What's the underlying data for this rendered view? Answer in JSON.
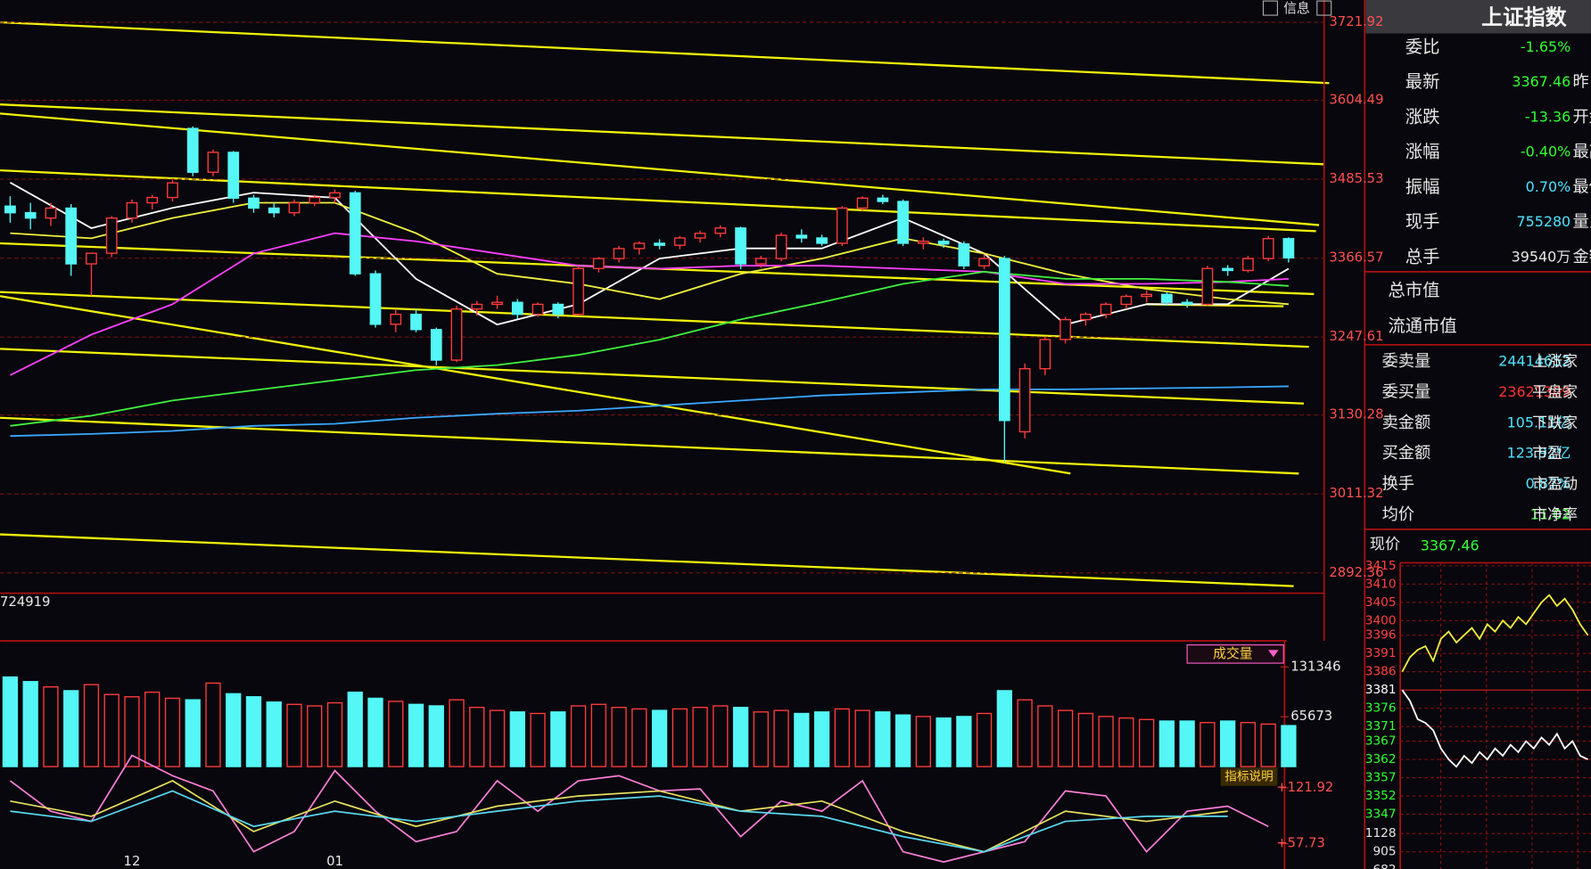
{
  "toolbar": {
    "info": "信息"
  },
  "chart_data": [
    {
      "type": "candlestick",
      "categories": [
        null,
        null,
        null,
        null,
        null,
        null,
        "12",
        null,
        null,
        null,
        null,
        null,
        null,
        null,
        null,
        null,
        "01",
        null,
        null,
        null,
        null,
        null,
        null,
        null,
        null,
        null,
        null,
        null,
        null,
        null,
        null,
        null,
        null,
        null,
        null,
        null,
        null,
        null,
        null,
        null,
        null,
        null,
        null,
        null,
        null,
        null,
        null,
        null,
        null,
        null,
        null,
        null,
        null,
        null,
        null,
        null,
        null,
        null,
        null,
        null,
        null,
        null,
        null,
        null
      ],
      "open": [
        3445,
        3435,
        3427,
        3442,
        3358,
        3374,
        3427,
        3450,
        3458,
        3562,
        3496,
        3526,
        3457,
        3442,
        3435,
        3450,
        3458,
        3465,
        3343,
        3267,
        3282,
        3259,
        3213,
        3290,
        3297,
        3300,
        3282,
        3297,
        3282,
        3351,
        3366,
        3381,
        3389,
        3386,
        3397,
        3404,
        3412,
        3358,
        3366,
        3401,
        3397,
        3389,
        3442,
        3457,
        3452,
        3389,
        3392,
        3388,
        3355,
        3366,
        3105,
        3200,
        3244,
        3274,
        3282,
        3297,
        3309,
        3312,
        3300,
        3297,
        3351,
        3348,
        3366,
        3396
      ],
      "high": [
        3460,
        3450,
        3450,
        3448,
        3375,
        3430,
        3455,
        3462,
        3485,
        3565,
        3530,
        3528,
        3462,
        3450,
        3455,
        3462,
        3470,
        3468,
        3348,
        3290,
        3290,
        3262,
        3295,
        3302,
        3310,
        3305,
        3300,
        3300,
        3355,
        3368,
        3385,
        3392,
        3395,
        3400,
        3408,
        3416,
        3414,
        3370,
        3405,
        3410,
        3402,
        3445,
        3460,
        3462,
        3455,
        3398,
        3396,
        3392,
        3372,
        3370,
        3208,
        3248,
        3278,
        3285,
        3300,
        3312,
        3318,
        3315,
        3305,
        3355,
        3356,
        3370,
        3400,
        3398
      ],
      "low": [
        3420,
        3410,
        3415,
        3340,
        3310,
        3368,
        3420,
        3440,
        3452,
        3490,
        3490,
        3450,
        3435,
        3428,
        3430,
        3445,
        3450,
        3340,
        3262,
        3255,
        3255,
        3205,
        3210,
        3280,
        3290,
        3275,
        3278,
        3276,
        3280,
        3345,
        3360,
        3372,
        3380,
        3380,
        3390,
        3398,
        3350,
        3352,
        3362,
        3390,
        3385,
        3385,
        3438,
        3448,
        3385,
        3380,
        3382,
        3350,
        3350,
        3060,
        3095,
        3190,
        3238,
        3265,
        3276,
        3290,
        3300,
        3295,
        3292,
        3295,
        3340,
        3345,
        3362,
        3360
      ],
      "close": [
        3435,
        3427,
        3442,
        3358,
        3374,
        3427,
        3450,
        3458,
        3480,
        3496,
        3526,
        3457,
        3442,
        3435,
        3450,
        3458,
        3465,
        3343,
        3267,
        3282,
        3259,
        3213,
        3290,
        3297,
        3300,
        3282,
        3297,
        3282,
        3351,
        3366,
        3381,
        3389,
        3386,
        3397,
        3404,
        3412,
        3358,
        3366,
        3401,
        3397,
        3389,
        3442,
        3457,
        3452,
        3389,
        3392,
        3388,
        3355,
        3366,
        3122,
        3200,
        3244,
        3274,
        3282,
        3297,
        3309,
        3312,
        3300,
        3297,
        3351,
        3348,
        3366,
        3396,
        3367
      ],
      "up_color": "#ff3b3b",
      "down_color": "#54f6f6",
      "lines": [
        {
          "color": "#ffffff",
          "x": [
            0,
            4,
            8,
            12,
            16,
            20,
            24,
            28,
            32,
            36,
            40,
            44,
            48,
            52,
            56,
            60,
            63
          ],
          "values": [
            3480.5,
            3411.8,
            3442.3,
            3465.3,
            3457.6,
            3335.4,
            3266.6,
            3297.2,
            3366,
            3381.3,
            3381.3,
            3427.1,
            3373.6,
            3266.6,
            3297.2,
            3297.2,
            3350.7
          ]
        },
        {
          "color": "#f0f040",
          "x": [
            0,
            4,
            8,
            12,
            16,
            20,
            24,
            28,
            32,
            36,
            40,
            44,
            48,
            52,
            56,
            60,
            63
          ],
          "values": [
            3404.2,
            3396.5,
            3427.1,
            3450,
            3450,
            3404.2,
            3343,
            3327.8,
            3304.8,
            3343,
            3366,
            3396.5,
            3373.6,
            3343,
            3320.1,
            3304.8,
            3297.2
          ]
        },
        {
          "color": "#ff40ff",
          "x": [
            0,
            4,
            8,
            12,
            16,
            20,
            24,
            28,
            32,
            36,
            40,
            44,
            48,
            52,
            56,
            60,
            63
          ],
          "values": [
            3190.3,
            3251.4,
            3297.2,
            3373.6,
            3404.2,
            3392,
            3373.6,
            3355.3,
            3350.7,
            3355.3,
            3355.3,
            3350.7,
            3346.1,
            3327.8,
            3327.8,
            3330.8,
            3335.4
          ]
        },
        {
          "color": "#40f040",
          "x": [
            0,
            4,
            8,
            12,
            16,
            20,
            24,
            28,
            32,
            36,
            40,
            44,
            48,
            52,
            56,
            60,
            63
          ],
          "values": [
            3113.9,
            3129.2,
            3152.1,
            3167.5,
            3182.6,
            3197.9,
            3205.5,
            3220.8,
            3243.7,
            3274.3,
            3300.1,
            3327.8,
            3346.1,
            3335.4,
            3335.4,
            3330.8,
            3324.7
          ]
        },
        {
          "color": "#3aa8ff",
          "x": [
            0,
            4,
            8,
            12,
            16,
            20,
            24,
            28,
            32,
            36,
            40,
            44,
            48,
            52,
            56,
            60,
            63
          ],
          "values": [
            3098.6,
            3101.7,
            3106.3,
            3113.9,
            3117,
            3126.1,
            3132.2,
            3136.8,
            3144.4,
            3152.1,
            3159.7,
            3164.3,
            3168.9,
            3168.9,
            3170.4,
            3171.9,
            3173.5
          ]
        }
      ],
      "ylim": [
        2892.36,
        3721.92
      ],
      "yticks": [
        3721.92,
        3604.49,
        3485.53,
        3366.57,
        3247.61,
        3130.28,
        3011.32,
        2892.36
      ],
      "grid": true
    },
    {
      "type": "bar",
      "annotation": "724919",
      "button": "成交量",
      "values": [
        118000,
        112000,
        105000,
        100000,
        108000,
        95000,
        92000,
        98000,
        90000,
        88000,
        110000,
        96000,
        92000,
        85000,
        82000,
        80000,
        84000,
        98000,
        90000,
        86000,
        82000,
        80000,
        88000,
        78000,
        74000,
        72000,
        70000,
        72000,
        80000,
        82000,
        78000,
        76000,
        74000,
        76000,
        78000,
        80000,
        78000,
        72000,
        74000,
        70000,
        72000,
        76000,
        74000,
        72000,
        68000,
        66000,
        64000,
        66000,
        70000,
        100000,
        88000,
        80000,
        74000,
        70000,
        66000,
        64000,
        62000,
        60000,
        60000,
        58000,
        60000,
        58000,
        56000,
        54000
      ],
      "ylim": [
        0,
        155000
      ],
      "yticks": [
        131346,
        65673
      ]
    },
    {
      "type": "line",
      "button": "指标说明",
      "ylim": [
        28.6,
        165.1
      ],
      "yticks": [
        {
          "value": 121.92,
          "label": "+121.92"
        },
        {
          "value": 57.73,
          "label": "+57.73"
        }
      ],
      "series": [
        {
          "color": "#ff7fd8",
          "x": [
            0,
            2,
            4,
            6,
            8,
            10,
            12,
            14,
            16,
            18,
            20,
            22,
            24,
            26,
            28,
            30,
            32,
            34,
            36,
            38,
            40,
            42,
            44,
            46,
            48,
            50,
            52,
            54,
            56,
            58,
            60,
            62
          ],
          "values": [
            130.1,
            95.1,
            83.4,
            159.3,
            135.9,
            118.4,
            48.4,
            71.7,
            141.8,
            95.1,
            60.1,
            71.7,
            130.1,
            95.1,
            130.1,
            135.9,
            118.4,
            120.8,
            65.9,
            106.7,
            95.1,
            130.1,
            48.4,
            36.7,
            48.4,
            60.1,
            118.4,
            112.6,
            48.4,
            95.1,
            100.9,
            77.6
          ]
        },
        {
          "color": "#e8e060",
          "x": [
            0,
            4,
            8,
            12,
            16,
            20,
            24,
            28,
            32,
            36,
            40,
            44,
            48,
            52,
            56,
            60
          ],
          "values": [
            106.7,
            89.2,
            130.1,
            71.7,
            106.7,
            77.6,
            100.9,
            112.6,
            118.4,
            95.1,
            106.7,
            71.7,
            48.4,
            95.1,
            83.4,
            95.1
          ]
        },
        {
          "color": "#5ad8f0",
          "x": [
            0,
            4,
            8,
            12,
            16,
            20,
            24,
            28,
            32,
            36,
            40,
            44,
            48,
            52,
            56,
            60
          ],
          "values": [
            95.1,
            83.4,
            118.4,
            77.6,
            95.1,
            83.4,
            95.1,
            106.7,
            112.6,
            95.1,
            89.2,
            65.9,
            48.4,
            83.4,
            89.2,
            89.2
          ]
        }
      ]
    },
    {
      "type": "line",
      "ylim": [
        3347,
        3415
      ],
      "yticks": [
        3415,
        3410,
        3405,
        3400,
        3396,
        3391,
        3386,
        3381,
        3376,
        3371,
        3367,
        3362,
        3357,
        3352,
        3347
      ],
      "y2lim": [
        682,
        1252
      ],
      "y2ticks": [
        1128,
        905,
        682
      ],
      "grid": true,
      "series": [
        {
          "color": "#f0f040",
          "values": [
            3386,
            3390,
            3392,
            3393,
            3389,
            3395,
            3397,
            3394,
            3396,
            3398,
            3395,
            3399,
            3397,
            3400,
            3398,
            3401,
            3399,
            3402,
            3405,
            3407,
            3404,
            3406,
            3403,
            3399,
            3396
          ]
        },
        {
          "color": "#ffffff",
          "values": [
            3381,
            3378,
            3373,
            3372,
            3370,
            3365,
            3362,
            3360,
            3363,
            3361,
            3364,
            3362,
            3365,
            3363,
            3366,
            3364,
            3367,
            3365,
            3368,
            3366,
            3369,
            3365,
            3367,
            3363,
            3362
          ]
        }
      ]
    }
  ],
  "quote": {
    "title": "上证指数",
    "rows": [
      {
        "label": "委比",
        "value": "-1.65%",
        "color": "#33ff33"
      },
      {
        "label": "最新",
        "value": "3367.46",
        "side": "昨",
        "color": "#33ff33"
      },
      {
        "label": "涨跌",
        "value": "-13.36",
        "side": "开盘",
        "color": "#33ff33"
      },
      {
        "label": "涨幅",
        "value": "-0.40%",
        "side": "最高",
        "color": "#33ff33"
      },
      {
        "label": "振幅",
        "value": "0.70%",
        "side": "最低",
        "color": "#4fe3ff"
      },
      {
        "label": "现手",
        "value": "755280",
        "side": "量比",
        "color": "#4fe3ff"
      },
      {
        "label": "总手",
        "value": "39540万",
        "side": "金额",
        "color": "#e8e8e8"
      }
    ],
    "caps": [
      "总市值",
      "流通市值"
    ],
    "orders": [
      {
        "label": "委卖量",
        "value": "24414652",
        "side": "上涨家",
        "color": "#4fe3ff"
      },
      {
        "label": "委买量",
        "value": "23621309",
        "side": "平盘家",
        "color": "#ff3333"
      },
      {
        "label": "卖金额",
        "value": "105.11亿",
        "side": "下跌家",
        "color": "#4fe3ff"
      },
      {
        "label": "买金额",
        "value": "123.92亿",
        "side": "市盈",
        "color": "#4fe3ff"
      },
      {
        "label": "换手",
        "value": "0.87%",
        "side": "市盈动",
        "color": "#4fe3ff"
      },
      {
        "label": "均价",
        "value": "11.02",
        "side": "市净率",
        "color": "#33ff33"
      }
    ],
    "price_label": "现价",
    "price": "3367.46"
  }
}
